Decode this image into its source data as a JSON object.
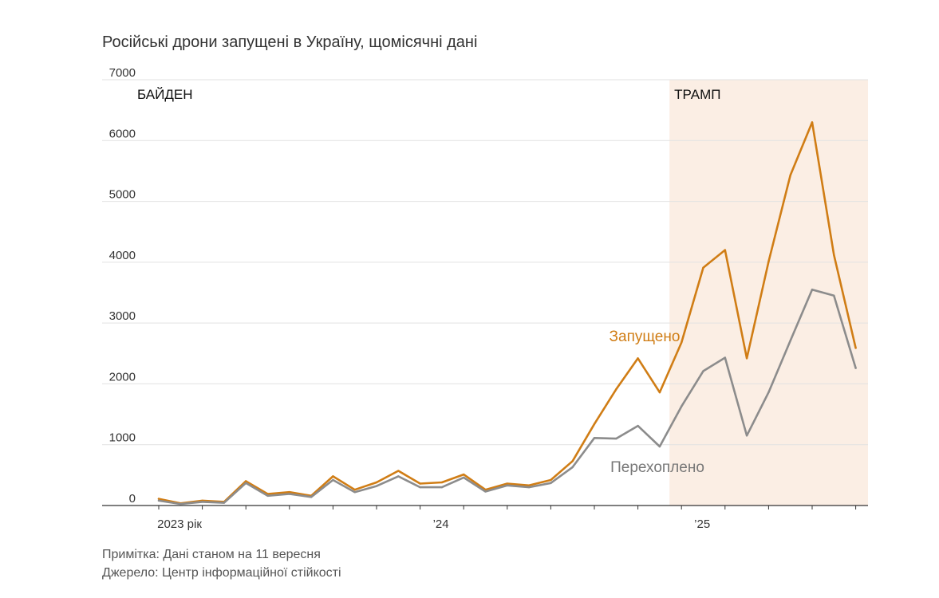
{
  "title": "Російські дрони запущені в Україну, щомісячні дані",
  "notes": {
    "note": "Примітка: Дані станом на 11 вересня",
    "source": "Джерело: Центр інформаційної стійкості"
  },
  "chart_data": {
    "type": "line",
    "title": "Російські дрони запущені в Україну, щомісячні дані",
    "x": [
      "2023-01",
      "2023-02",
      "2023-03",
      "2023-04",
      "2023-05",
      "2023-06",
      "2023-07",
      "2023-08",
      "2023-09",
      "2023-10",
      "2023-11",
      "2023-12",
      "2024-01",
      "2024-02",
      "2024-03",
      "2024-04",
      "2024-05",
      "2024-06",
      "2024-07",
      "2024-08",
      "2024-09",
      "2024-10",
      "2024-11",
      "2024-12",
      "2025-01",
      "2025-02",
      "2025-03",
      "2025-04",
      "2025-05",
      "2025-06",
      "2025-07",
      "2025-08",
      "2025-09"
    ],
    "ylim": [
      0,
      7000
    ],
    "y_ticks": [
      {
        "value": 0,
        "label": "0"
      },
      {
        "value": 1000,
        "label": "1000"
      },
      {
        "value": 2000,
        "label": "2000"
      },
      {
        "value": 3000,
        "label": "3000"
      },
      {
        "value": 4000,
        "label": "4000"
      },
      {
        "value": 5000,
        "label": "5000"
      },
      {
        "value": 6000,
        "label": "6000"
      },
      {
        "value": 7000,
        "label": "7000"
      }
    ],
    "x_ticks": [
      {
        "value": "2023-01",
        "label": "2023 рік"
      },
      {
        "value": "2024-01",
        "label": "’24"
      },
      {
        "value": "2025-01",
        "label": "’25"
      }
    ],
    "grid": true,
    "series": [
      {
        "name": "Запущено",
        "color": "#d07d15",
        "values": [
          110,
          35,
          80,
          60,
          400,
          190,
          220,
          160,
          480,
          260,
          380,
          570,
          360,
          380,
          510,
          260,
          360,
          330,
          420,
          730,
          1340,
          1910,
          2420,
          1860,
          2680,
          3910,
          4200,
          2420,
          4010,
          5430,
          6300,
          4120,
          2590
        ]
      },
      {
        "name": "Перехоплено",
        "color": "#8c8c8c",
        "values": [
          80,
          25,
          60,
          45,
          370,
          160,
          190,
          140,
          420,
          220,
          320,
          480,
          300,
          300,
          460,
          230,
          330,
          300,
          370,
          630,
          1110,
          1100,
          1310,
          970,
          1630,
          2210,
          2430,
          1150,
          1860,
          2710,
          3550,
          3450,
          2260
        ]
      }
    ],
    "annotations": [
      {
        "label": "БАЙДЕН"
      },
      {
        "label": "ТРАМП",
        "x_start": "2025-01",
        "x_end": "2025-09",
        "color": "#fbeee4"
      }
    ]
  }
}
